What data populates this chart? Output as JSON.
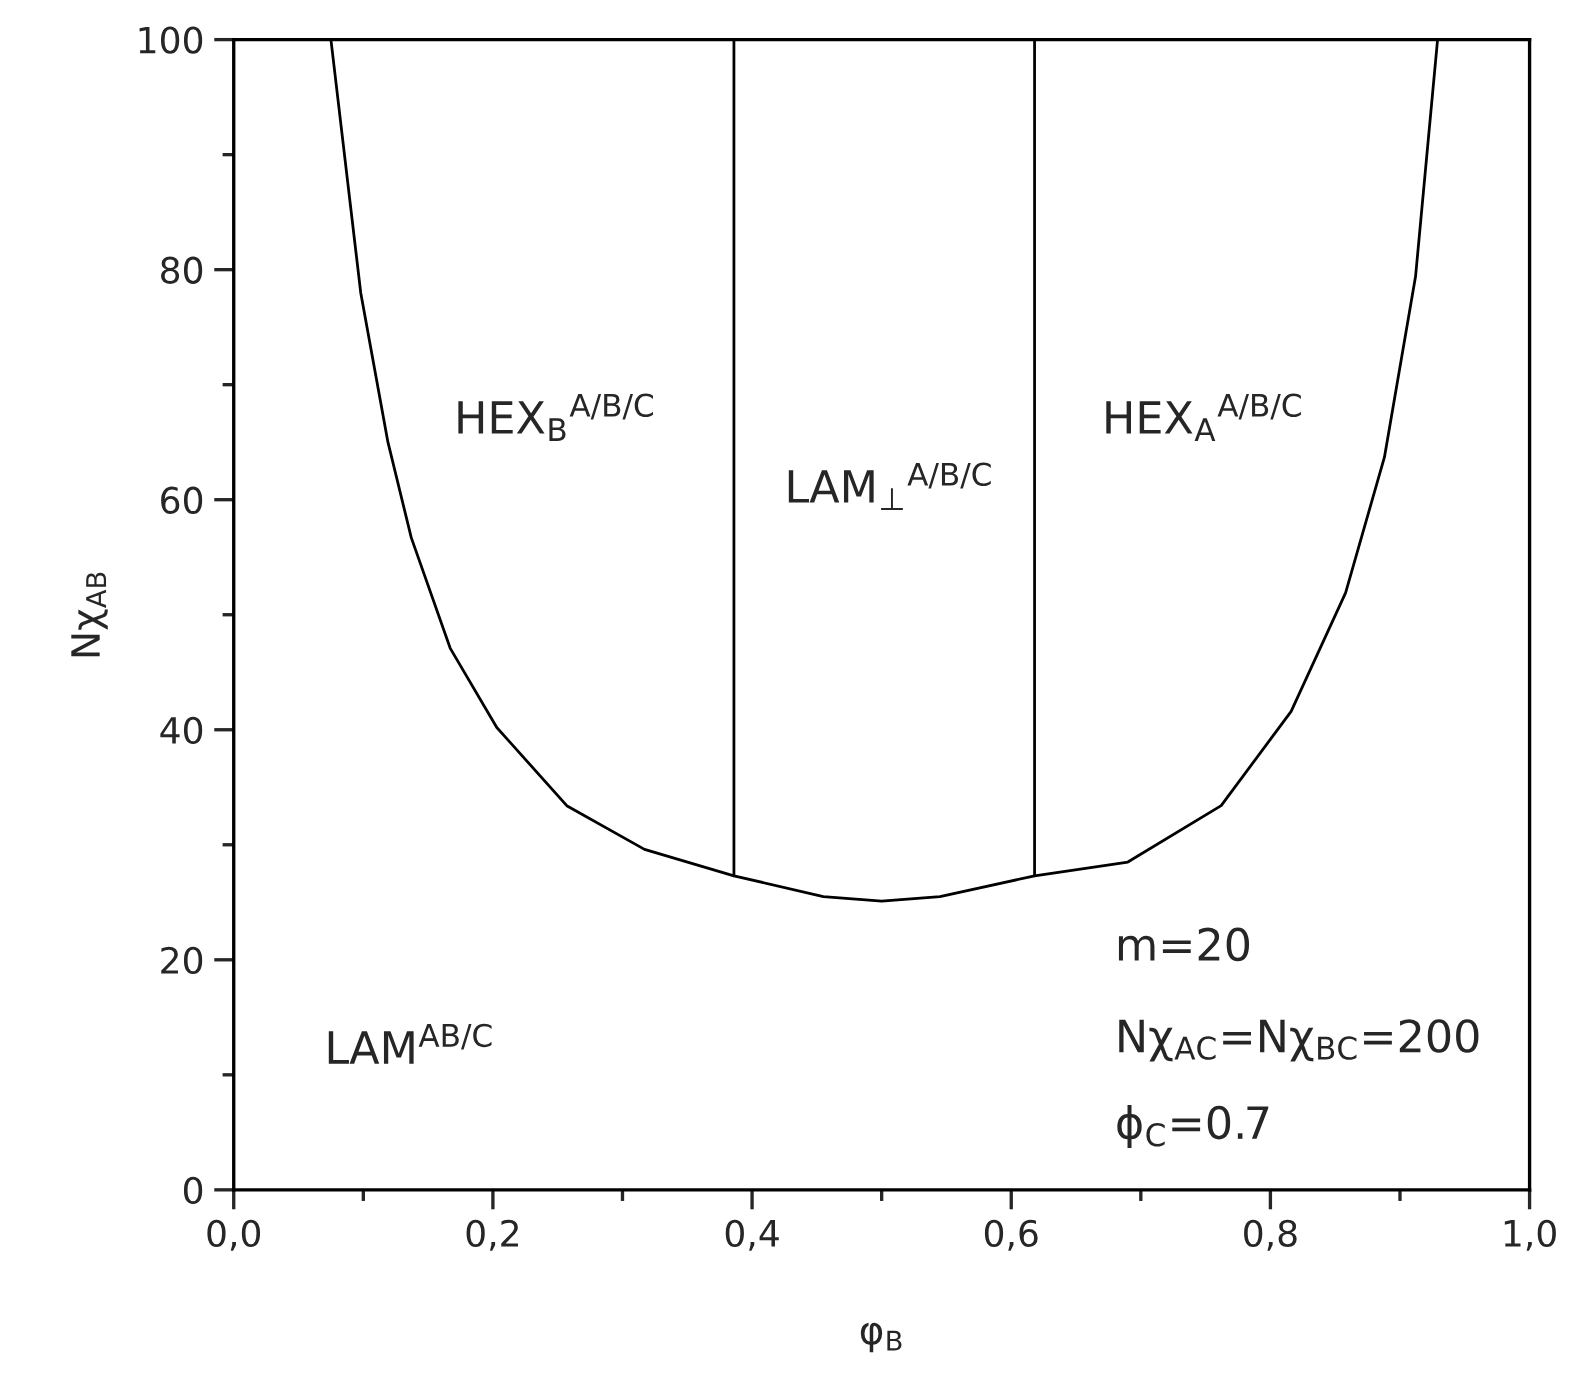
{
  "chart_data": {
    "type": "line",
    "xlabel": "φ$_{B}$",
    "ylabel": "Nχ$_{AB}$",
    "series": [
      {
        "color": "#000000",
        "x": [
          0.075,
          0.098,
          0.119,
          0.137,
          0.167,
          0.203,
          0.257,
          0.317,
          0.386,
          0.455,
          0.5,
          0.545,
          0.618,
          0.69,
          0.762,
          0.816,
          0.858,
          0.888,
          0.912,
          0.929
        ],
        "values": [
          100,
          78.0,
          65.0,
          56.7,
          47.1,
          40.2,
          33.4,
          29.6,
          27.3,
          25.5,
          25.1,
          25.5,
          27.3,
          28.5,
          33.4,
          41.6,
          51.9,
          63.7,
          79.4,
          100
        ]
      },
      {
        "color": "#000000",
        "x": [
          0.386,
          0.386
        ],
        "values": [
          27.3,
          100
        ]
      },
      {
        "color": "#000000",
        "x": [
          0.618,
          0.618
        ],
        "values": [
          27.3,
          100
        ]
      }
    ],
    "annotations": [
      "HEX$_{B}$$^{A/B/C}$",
      "LAM$_{⊥}$$^{A/B/C}$",
      "HEX$_{A}$$^{A/B/C}$",
      "LAM$^{AB/C}$",
      "m=20",
      "Nχ$_{AC}$=Nχ$_{BC}$=200",
      "ϕ$_{C}$=0.7"
    ],
    "xlim": [
      0,
      1.0
    ],
    "ylim": [
      0,
      100
    ],
    "xticks": [
      {
        "value": 0,
        "label": "0,0"
      },
      {
        "value": 0.2,
        "label": "0,2"
      },
      {
        "value": 0.4,
        "label": "0,4"
      },
      {
        "value": 0.6,
        "label": "0,6"
      },
      {
        "value": 0.8,
        "label": "0,8"
      },
      {
        "value": 1.0,
        "label": "1,0"
      }
    ],
    "yticks": [
      0,
      20,
      40,
      60,
      80,
      100
    ],
    "grid": false,
    "marker": "none",
    "line_style": "solid"
  }
}
